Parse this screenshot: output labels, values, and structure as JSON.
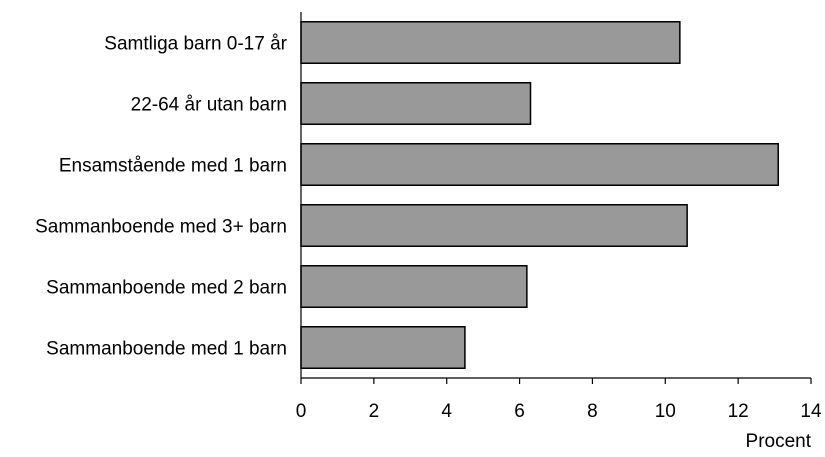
{
  "chart_data": {
    "type": "bar",
    "orientation": "horizontal",
    "categories": [
      "Samtliga barn 0-17 år",
      "22-64 år utan barn",
      "Ensamstående med 1 barn",
      "Sammanboende med 3+ barn",
      "Sammanboende med 2 barn",
      "Sammanboende med 1 barn"
    ],
    "values": [
      10.4,
      6.3,
      13.1,
      10.6,
      6.2,
      4.5
    ],
    "xlabel": "Procent",
    "ylabel": "",
    "xlim": [
      0,
      14
    ],
    "xticks": [
      0,
      2,
      4,
      6,
      8,
      10,
      12,
      14
    ],
    "bar_color": "#999999",
    "grid": false,
    "legend": "none"
  }
}
